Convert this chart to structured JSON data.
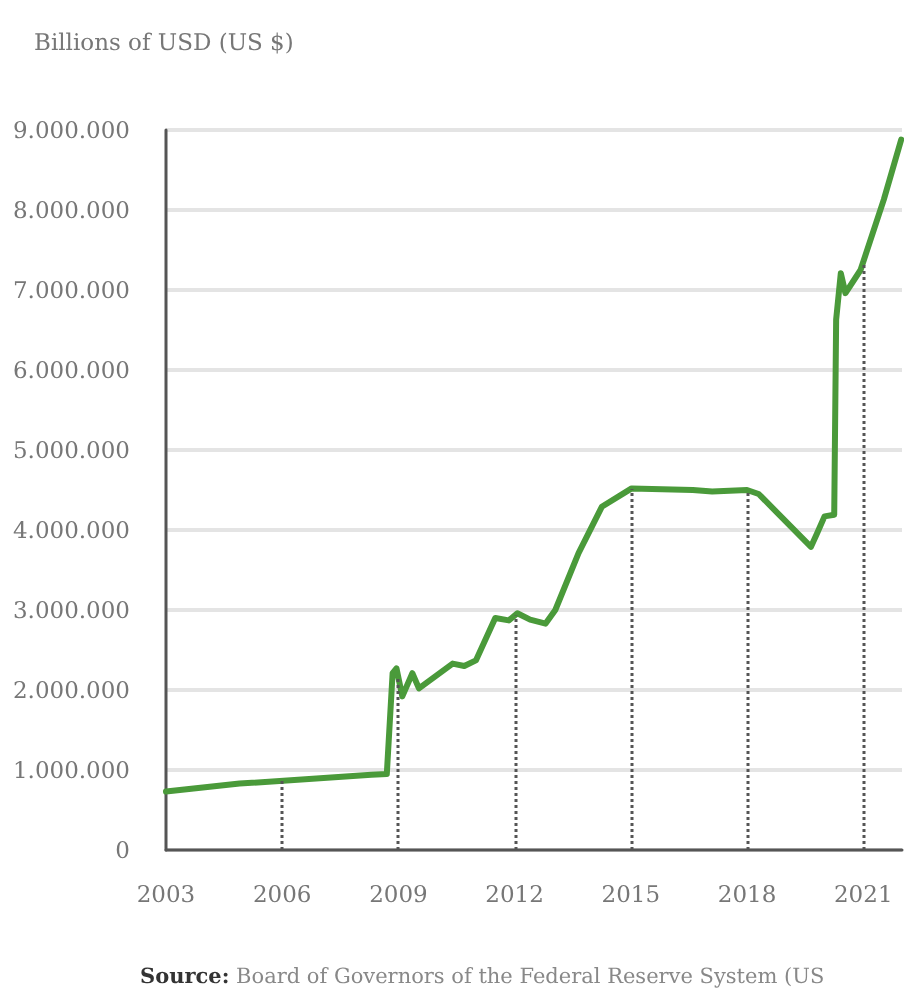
{
  "chart_data": {
    "type": "line",
    "ylabel": "Billions of USD (US $)",
    "annotations": [
      "Source: Board of Governors of the Federal Reserve System (US"
    ],
    "series": [
      {
        "color": "#4a9a3a",
        "x": [
          2003.0,
          2004.9,
          2008.3,
          2008.7,
          2008.85,
          2008.95,
          2009.1,
          2009.36,
          2009.53,
          2010.4,
          2010.7,
          2011.0,
          2011.5,
          2011.85,
          2012.07,
          2012.4,
          2012.8,
          2013.05,
          2013.65,
          2014.25,
          2015.02,
          2016.6,
          2017.1,
          2018.0,
          2018.3,
          2019.65,
          2019.8,
          2020.0,
          2020.25,
          2020.3,
          2020.42,
          2020.54,
          2020.93,
          2021.53,
          2021.98
        ],
        "values": [
          730000,
          830000,
          940000,
          950000,
          2210000,
          2270000,
          1920000,
          2210000,
          2020000,
          2330000,
          2300000,
          2370000,
          2900000,
          2870000,
          2960000,
          2880000,
          2830000,
          3000000,
          3710000,
          4290000,
          4520000,
          4500000,
          4480000,
          4500000,
          4450000,
          3790000,
          3950000,
          4170000,
          4190000,
          6630000,
          7210000,
          6960000,
          7250000,
          8130000,
          8880000
        ]
      }
    ],
    "xlim": [
      2003,
      2022
    ],
    "xticks": [
      2003,
      2006,
      2009,
      2012,
      2015,
      2018,
      2021
    ],
    "ylim": [
      0,
      9000000
    ],
    "yticks": [
      0,
      {
        "value": 1000000,
        "label": "1.000.000"
      },
      {
        "value": 2000000,
        "label": "2.000.000"
      },
      {
        "value": 3000000,
        "label": "3.000.000"
      },
      {
        "value": 4000000,
        "label": "4.000.000"
      },
      {
        "value": 5000000,
        "label": "5.000.000"
      },
      {
        "value": 6000000,
        "label": "6.000.000"
      },
      {
        "value": 7000000,
        "label": "7.000.000"
      },
      {
        "value": 8000000,
        "label": "8.000.000"
      },
      {
        "value": 9000000,
        "label": "9.000.000"
      }
    ],
    "ref_lines": [
      {
        "axis": "x",
        "value": 2006,
        "color": "#555555",
        "line_style": "dotted"
      },
      {
        "axis": "x",
        "value": 2009,
        "color": "#555555",
        "line_style": "dotted"
      },
      {
        "axis": "x",
        "value": 2012,
        "color": "#555555",
        "line_style": "dotted"
      },
      {
        "axis": "x",
        "value": 2015,
        "color": "#555555",
        "line_style": "dotted"
      },
      {
        "axis": "x",
        "value": 2018,
        "color": "#555555",
        "line_style": "dotted"
      },
      {
        "axis": "x",
        "value": 2021,
        "color": "#555555",
        "line_style": "dotted"
      }
    ],
    "grid": "y",
    "marker": "none",
    "line_style": "solid"
  }
}
